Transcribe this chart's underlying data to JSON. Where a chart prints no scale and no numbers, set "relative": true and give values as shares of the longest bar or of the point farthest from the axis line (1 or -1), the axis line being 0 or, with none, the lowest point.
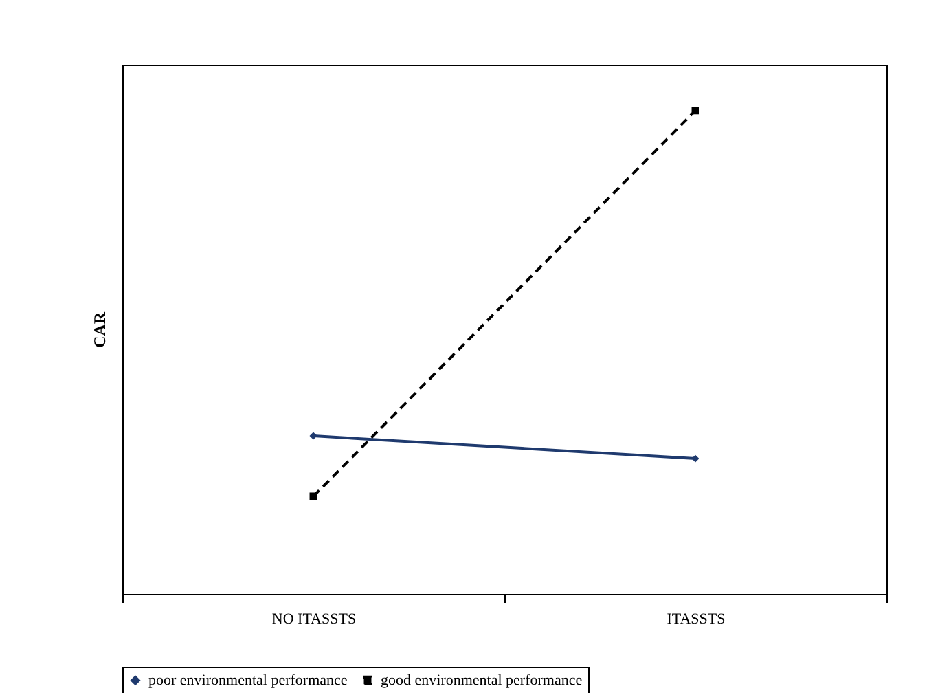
{
  "chart_data": {
    "type": "line",
    "relative": true,
    "ylabel": "CAR",
    "categories": [
      "NO ITASSTS",
      "ITASSTS"
    ],
    "legend": "bottom",
    "grid": false,
    "series": [
      {
        "name": "poor environmental performance",
        "color": "#1f3a6e",
        "values": [
          0.327,
          0.28
        ],
        "marker": "diamond",
        "line_style": "solid"
      },
      {
        "name": "good environmental performance",
        "color": "#000000",
        "values": [
          0.202,
          1
        ],
        "marker": "square",
        "line_style": "dashed"
      }
    ]
  }
}
